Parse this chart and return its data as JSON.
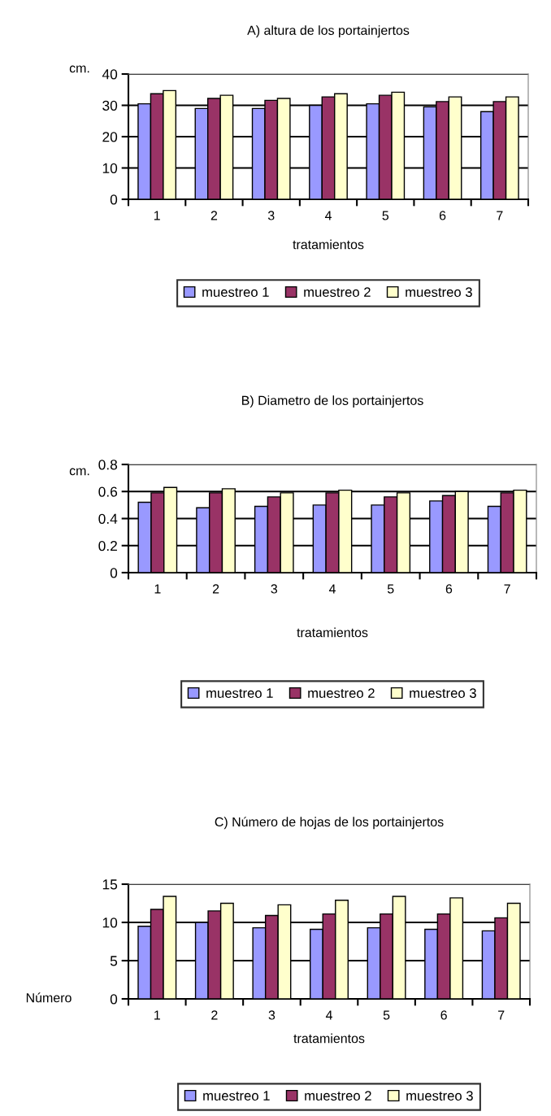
{
  "chart_data": [
    {
      "type": "bar",
      "title": "A) altura de los portainjertos",
      "xlabel": "tratamientos",
      "ylabel": "cm.",
      "categories": [
        "1",
        "2",
        "3",
        "4",
        "5",
        "6",
        "7"
      ],
      "ylim": [
        0,
        40
      ],
      "yticks": [
        0,
        10,
        20,
        30,
        40
      ],
      "grid": "y",
      "legend": "bottom",
      "series": [
        {
          "name": "muestreo 1",
          "color": "#9999ff",
          "values": [
            30.5,
            29,
            29,
            30,
            30.5,
            29.5,
            28
          ]
        },
        {
          "name": "muestreo 2",
          "color": "#993366",
          "values": [
            33.7,
            32.2,
            31.6,
            32.7,
            33.2,
            31.2,
            31.2
          ]
        },
        {
          "name": "muestreo 3",
          "color": "#ffffcc",
          "values": [
            34.7,
            33.2,
            32.2,
            33.7,
            34.2,
            32.7,
            32.7
          ]
        }
      ]
    },
    {
      "type": "bar",
      "title": "B) Diametro de los portainjertos",
      "xlabel": "tratamientos",
      "ylabel": "cm.",
      "categories": [
        "1",
        "2",
        "3",
        "4",
        "5",
        "6",
        "7"
      ],
      "ylim": [
        0,
        0.8
      ],
      "yticks": [
        {
          "value": 0,
          "label": "0"
        },
        0.2,
        0.4,
        0.6,
        0.8
      ],
      "grid": "y",
      "legend": "bottom",
      "series": [
        {
          "name": "muestreo 1",
          "color": "#9999ff",
          "values": [
            0.52,
            0.48,
            0.49,
            0.5,
            0.5,
            0.53,
            0.49
          ]
        },
        {
          "name": "muestreo 2",
          "color": "#993366",
          "values": [
            0.59,
            0.59,
            0.56,
            0.59,
            0.56,
            0.57,
            0.59
          ]
        },
        {
          "name": "muestreo 3",
          "color": "#ffffcc",
          "values": [
            0.63,
            0.62,
            0.59,
            0.61,
            0.59,
            0.6,
            0.61
          ]
        }
      ]
    },
    {
      "type": "bar",
      "title": "C) Número de hojas de los portainjertos",
      "xlabel": "tratamientos",
      "ylabel": "Número",
      "categories": [
        "1",
        "2",
        "3",
        "4",
        "5",
        "6",
        "7"
      ],
      "ylim": [
        0,
        15
      ],
      "yticks": [
        0,
        5,
        10,
        15
      ],
      "grid": "y",
      "legend": "bottom",
      "series": [
        {
          "name": "muestreo 1",
          "color": "#9999ff",
          "values": [
            9.5,
            10,
            9.3,
            9.1,
            9.3,
            9.1,
            8.9
          ]
        },
        {
          "name": "muestreo 2",
          "color": "#993366",
          "values": [
            11.7,
            11.5,
            10.9,
            11.1,
            11.1,
            11.1,
            10.6
          ]
        },
        {
          "name": "muestreo 3",
          "color": "#ffffcc",
          "values": [
            13.4,
            12.5,
            12.3,
            12.9,
            13.4,
            13.2,
            12.5
          ]
        }
      ]
    }
  ]
}
